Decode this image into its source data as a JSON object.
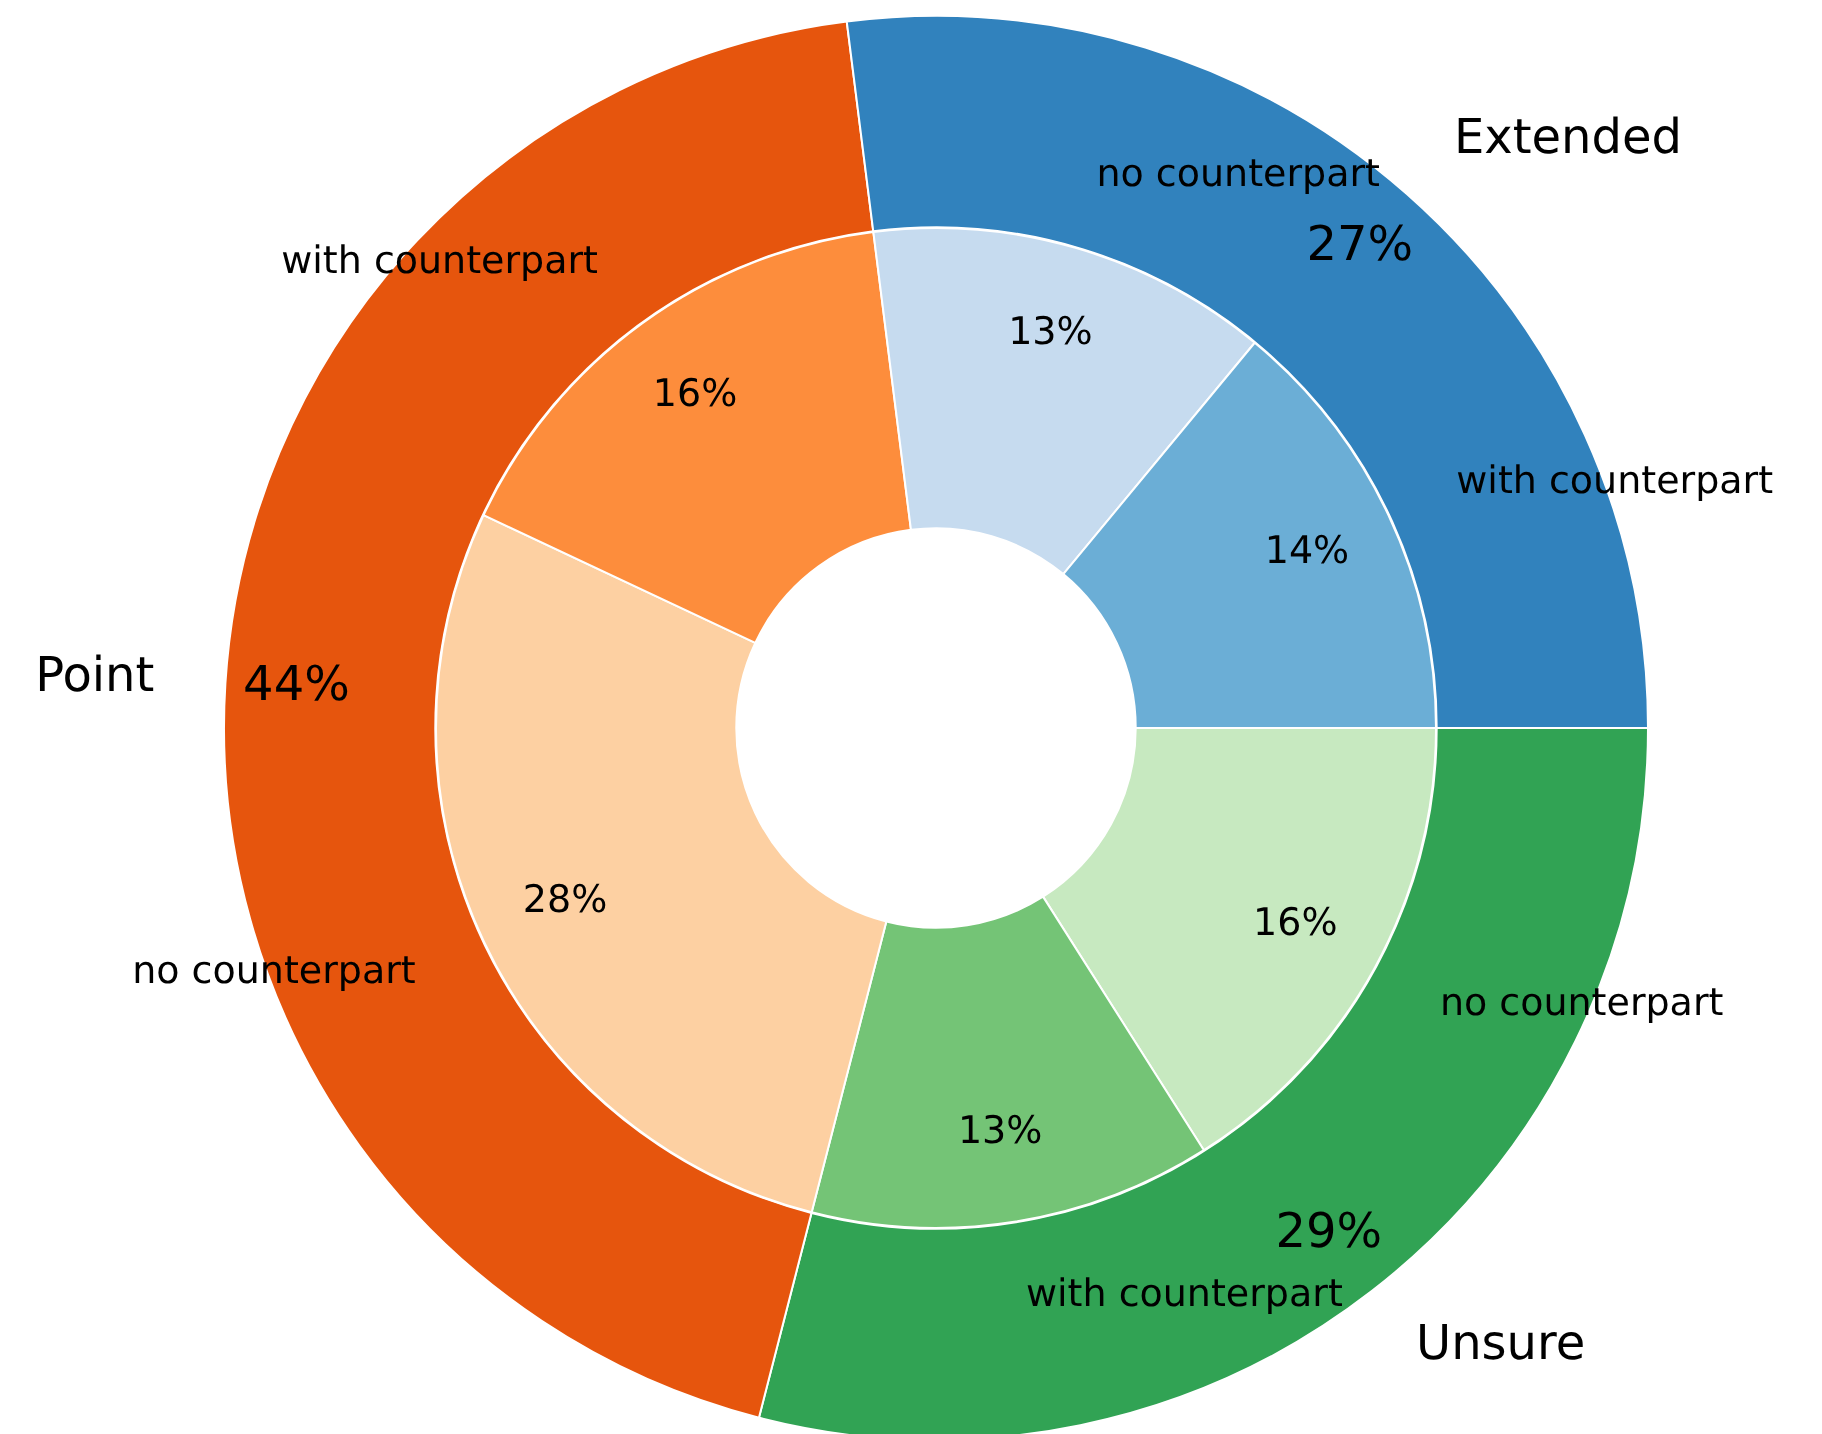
{
  "chart_data": [
    {
      "type": "donut",
      "categories": [
        "Extended",
        "Point",
        "Unsure"
      ],
      "values": [
        27,
        44,
        29
      ],
      "colors": [
        "#3182bd",
        "#e6550d",
        "#31a354"
      ],
      "value_labels": [
        "27%",
        "44%",
        "29%"
      ]
    },
    {
      "type": "donut",
      "categories": [
        "with counterpart",
        "no counterpart",
        "with counterpart",
        "no counterpart",
        "with counterpart",
        "no counterpart"
      ],
      "values": [
        14,
        13,
        16,
        28,
        13,
        16
      ],
      "colors": [
        "#6baed6",
        "#c6dbef",
        "#fd8d3c",
        "#fdd0a2",
        "#74c476",
        "#c7e9c0"
      ],
      "value_labels": [
        "14%",
        "13%",
        "16%",
        "28%",
        "13%",
        "16%"
      ]
    }
  ]
}
